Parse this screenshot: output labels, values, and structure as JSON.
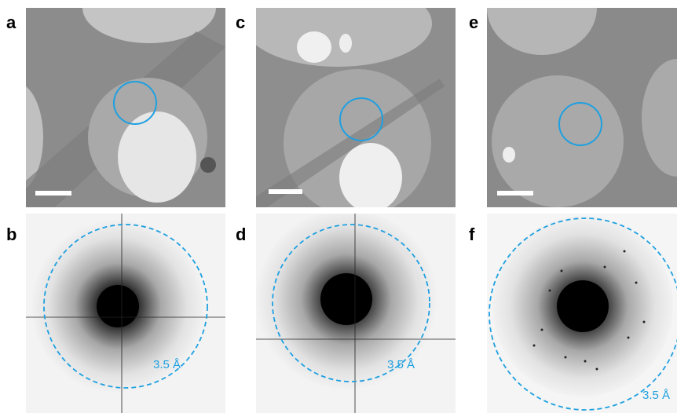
{
  "panels": [
    {
      "label": "a"
    },
    {
      "label": "b",
      "resolution": "3.5 Å"
    },
    {
      "label": "c"
    },
    {
      "label": "d",
      "resolution": "3.5 Å"
    },
    {
      "label": "e"
    },
    {
      "label": "f",
      "resolution": "3.5 Å"
    }
  ]
}
